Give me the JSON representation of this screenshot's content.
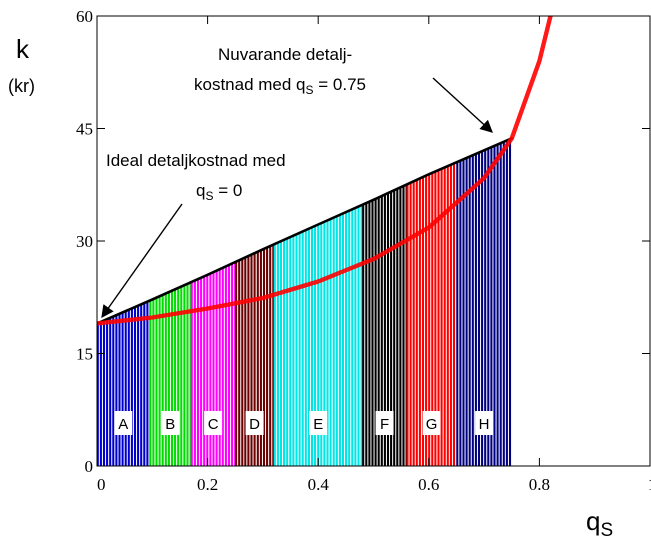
{
  "chart_data": {
    "type": "area",
    "title": "",
    "xlabel": "q",
    "xlabel_sub": "S",
    "ylabel": "k",
    "ylabel_unit": "(kr)",
    "xlim": [
      0,
      1
    ],
    "ylim": [
      0,
      60
    ],
    "x_ticks": [
      0,
      0.2,
      0.4,
      0.6,
      0.8,
      1
    ],
    "x_tick_labels": [
      "0",
      "0.2",
      "0.4",
      "0.6",
      "0.8",
      "1"
    ],
    "y_ticks": [
      0,
      15,
      30,
      45,
      60
    ],
    "y_tick_labels": [
      "0",
      "15",
      "30",
      "45",
      "60"
    ],
    "grid": false,
    "series": [
      {
        "color": "#000000",
        "x": [
          0,
          0.1,
          0.2,
          0.3,
          0.4,
          0.5,
          0.6,
          0.7,
          0.75
        ],
        "values": [
          19,
          22.2,
          25.5,
          28.9,
          32.2,
          35.5,
          38.9,
          42.1,
          43.7
        ]
      },
      {
        "color": "#ff0000",
        "x": [
          0,
          0.1,
          0.2,
          0.3,
          0.4,
          0.5,
          0.6,
          0.7,
          0.75,
          0.8,
          0.82
        ],
        "values": [
          19,
          19.8,
          21,
          22.4,
          24.6,
          27.6,
          31.8,
          38.4,
          43.7,
          54,
          60
        ]
      }
    ],
    "segments": [
      {
        "label": "A",
        "x0": 0,
        "x1": 0.095,
        "color": "#0000cc"
      },
      {
        "label": "B",
        "x0": 0.095,
        "x1": 0.17,
        "color": "#00dd00"
      },
      {
        "label": "C",
        "x0": 0.17,
        "x1": 0.25,
        "color": "#ff00ff"
      },
      {
        "label": "D",
        "x0": 0.25,
        "x1": 0.32,
        "color": "#6b0000"
      },
      {
        "label": "E",
        "x0": 0.32,
        "x1": 0.48,
        "color": "#00e5e5"
      },
      {
        "label": "F",
        "x0": 0.48,
        "x1": 0.56,
        "color": "#000000"
      },
      {
        "label": "G",
        "x0": 0.56,
        "x1": 0.65,
        "color": "#ff0000"
      },
      {
        "label": "H",
        "x0": 0.65,
        "x1": 0.75,
        "color": "#000080"
      }
    ],
    "annotations": [
      {
        "lines": [
          {
            "text": "Nuvarande detalj-"
          },
          {
            "text": "kostnad med q",
            "sub": "S",
            "post": " = 0.75"
          }
        ],
        "point": [
          0.72,
          43.3
        ]
      },
      {
        "lines": [
          {
            "text": "Ideal detaljkostnad med"
          },
          {
            "text": "q",
            "sub": "S",
            "post": " = 0"
          }
        ],
        "point": [
          0.005,
          19.2
        ]
      }
    ]
  }
}
